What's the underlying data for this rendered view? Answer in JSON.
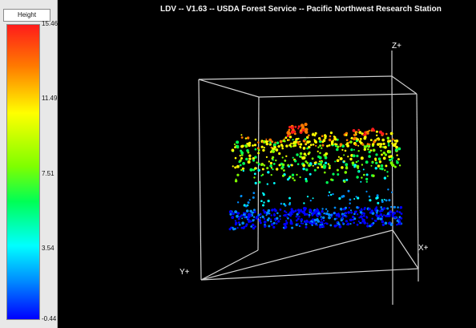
{
  "window": {
    "title": "LDV -- V1.63 -- USDA Forest Service -- Pacific Northwest Research Station"
  },
  "legend": {
    "title": "Height",
    "labels": [
      "15.46",
      "11.49",
      "7.51",
      "3.54",
      "-0.44"
    ],
    "color_scale": [
      "#ff1b1b",
      "#ff7a00",
      "#ffff00",
      "#7fff00",
      "#00ff55",
      "#00ffff",
      "#008cff",
      "#0000ff"
    ]
  },
  "viewer": {
    "axes": {
      "z": "Z+",
      "x": "X+",
      "y": "Y+"
    }
  }
}
